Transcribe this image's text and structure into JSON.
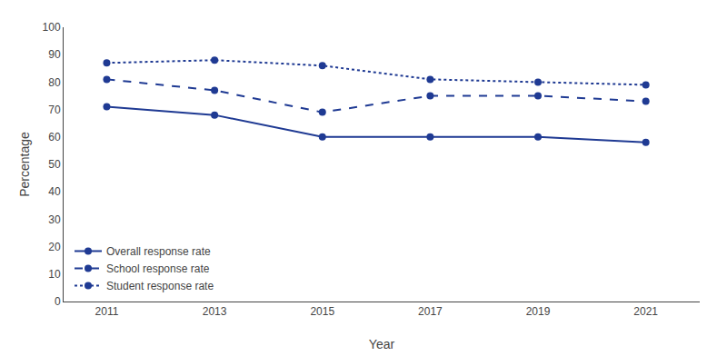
{
  "chart_data": {
    "type": "line",
    "xlabel": "Year",
    "ylabel": "Percentage",
    "x": [
      2011,
      2013,
      2015,
      2017,
      2019,
      2021
    ],
    "series": [
      {
        "name": "Overall response rate",
        "color": "#1F3A93",
        "line_style": "solid",
        "marker": "circle",
        "values": [
          71,
          68,
          60,
          60,
          60,
          58
        ]
      },
      {
        "name": "School response rate",
        "color": "#1F3A93",
        "line_style": "dashed",
        "marker": "circle",
        "values": [
          81,
          77,
          69,
          75,
          75,
          73
        ]
      },
      {
        "name": "Student response rate",
        "color": "#1F3A93",
        "line_style": "dotted",
        "marker": "circle",
        "values": [
          87,
          88,
          86,
          81,
          80,
          79
        ]
      }
    ],
    "xlim": [
      2010.2,
      2022.0
    ],
    "xticks": [
      2011,
      2013,
      2015,
      2017,
      2019,
      2021
    ],
    "ylim": [
      0,
      100
    ],
    "yticks": [
      0,
      10,
      20,
      30,
      40,
      50,
      60,
      70,
      80,
      90,
      100
    ],
    "grid": false,
    "legend": "lower left"
  }
}
